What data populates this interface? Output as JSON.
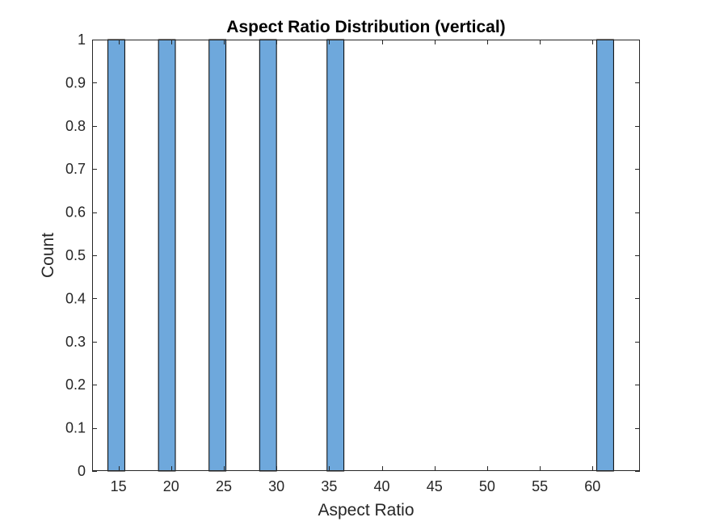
{
  "chart_data": {
    "type": "bar",
    "title": "Aspect Ratio Distribution (vertical)",
    "xlabel": "Aspect Ratio",
    "ylabel": "Count",
    "xlim": [
      12.5,
      64.5
    ],
    "ylim": [
      0,
      1
    ],
    "xticks": [
      15,
      20,
      25,
      30,
      35,
      40,
      45,
      50,
      55,
      60
    ],
    "yticks": [
      0,
      0.1,
      0.2,
      0.3,
      0.4,
      0.5,
      0.6,
      0.7,
      0.8,
      0.9,
      1
    ],
    "bin_width": 1.6,
    "bins": [
      {
        "left": 14.0,
        "right": 15.6,
        "count": 1
      },
      {
        "left": 18.8,
        "right": 20.4,
        "count": 1
      },
      {
        "left": 23.6,
        "right": 25.2,
        "count": 1
      },
      {
        "left": 28.4,
        "right": 30.0,
        "count": 1
      },
      {
        "left": 34.8,
        "right": 36.4,
        "count": 1
      },
      {
        "left": 60.4,
        "right": 62.0,
        "count": 1
      }
    ],
    "bar_color": "#6ea8dc",
    "bar_edge_color": "#000000",
    "grid": false,
    "legend": "none"
  }
}
